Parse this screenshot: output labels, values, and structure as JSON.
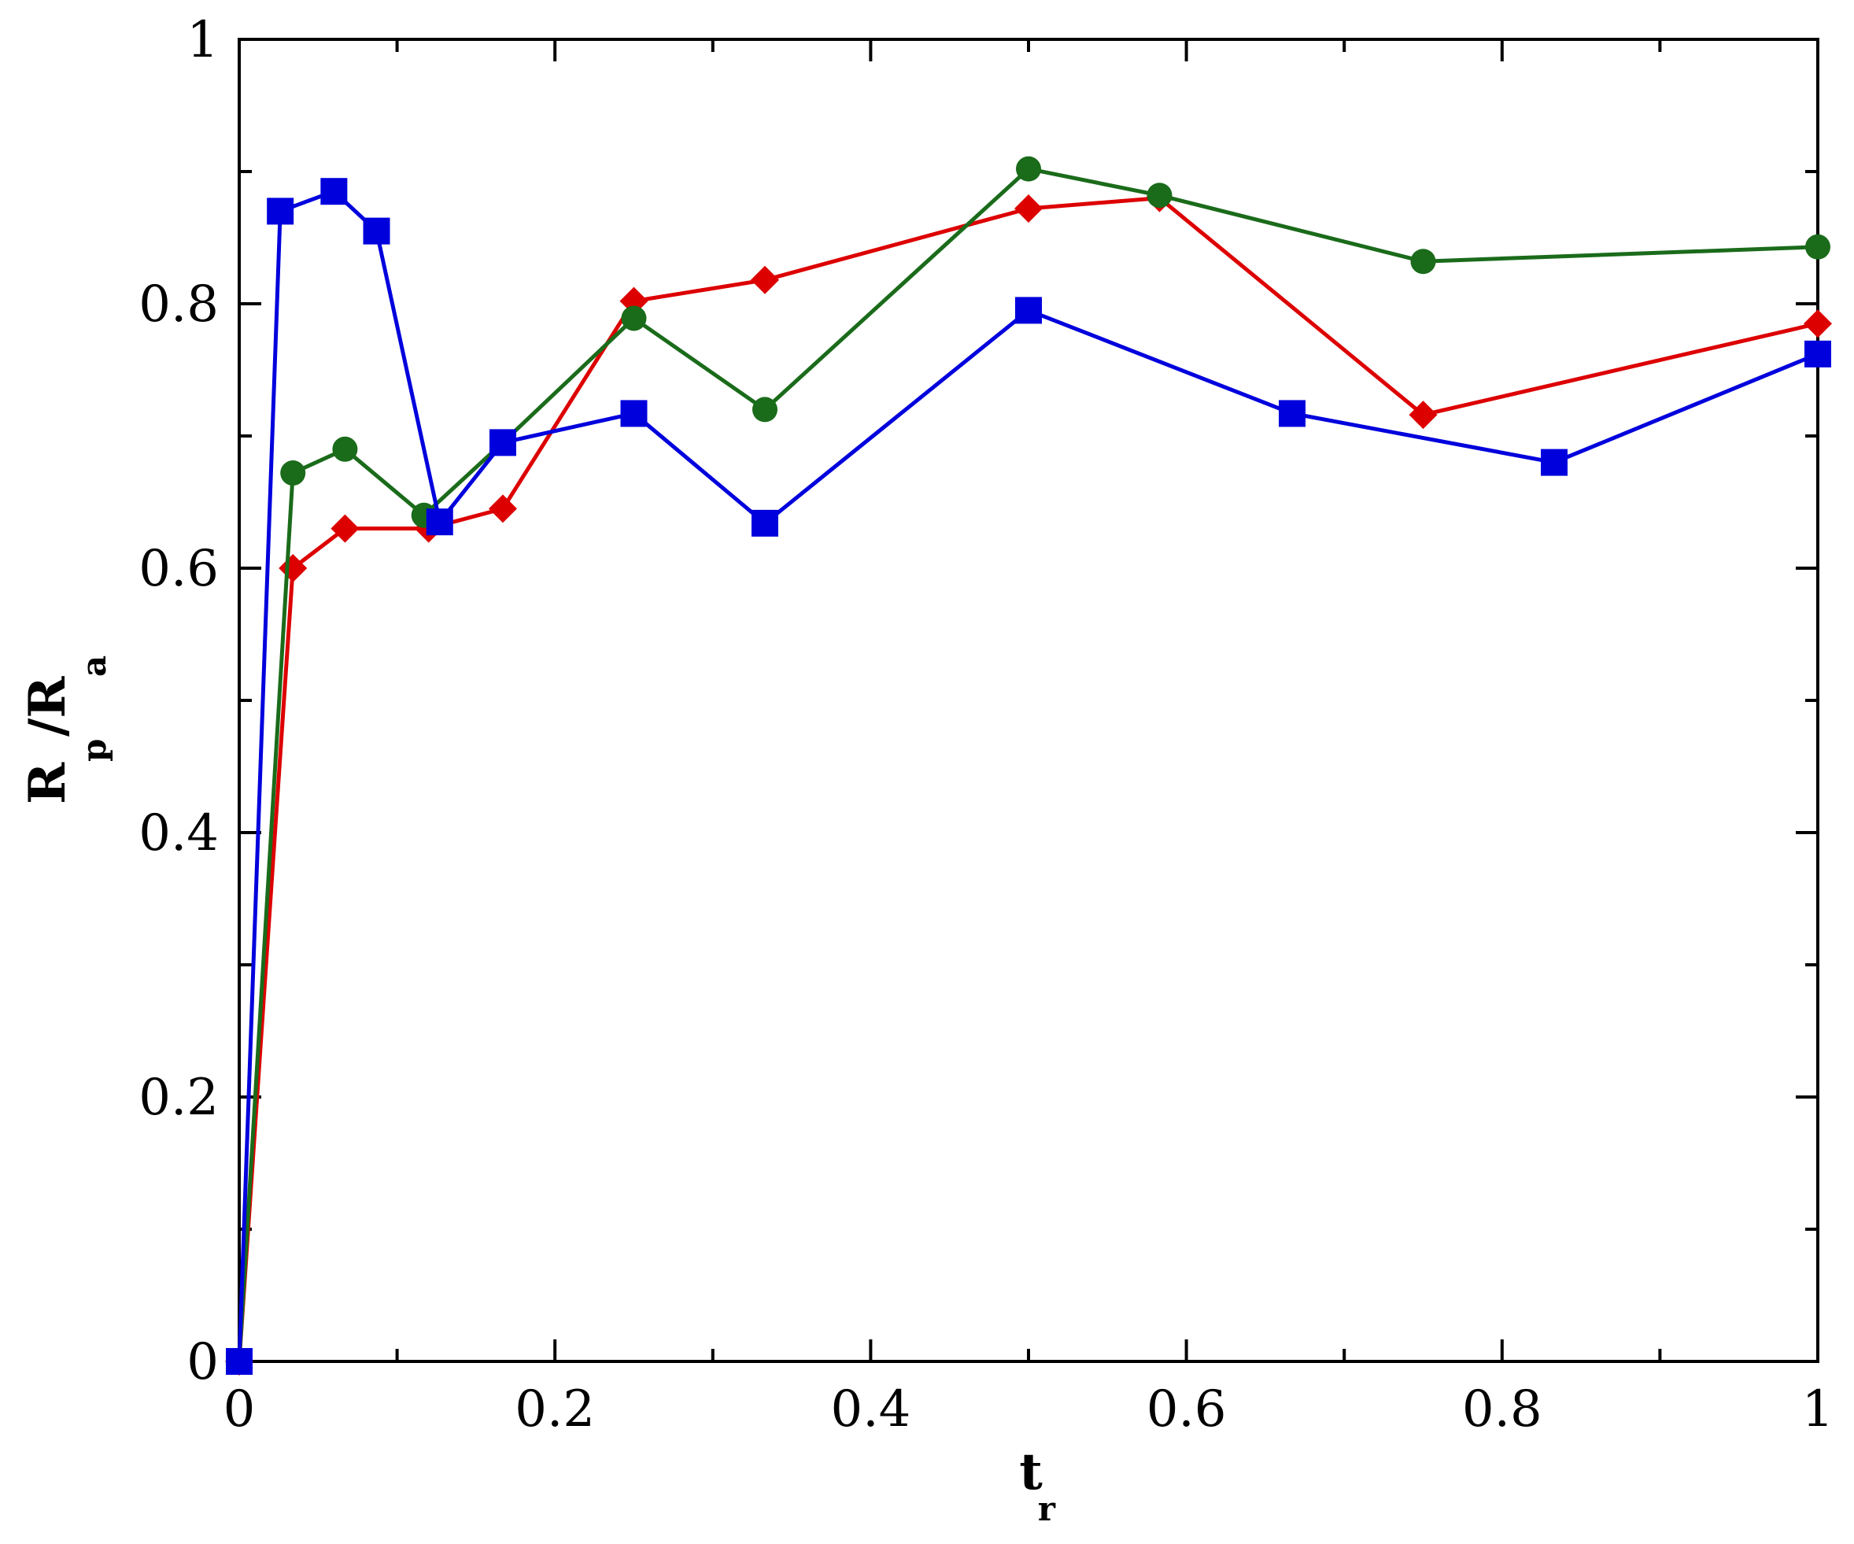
{
  "chart_data": {
    "type": "line",
    "xlabel": {
      "main": "t",
      "sub": "r"
    },
    "ylabel": {
      "main1": "R",
      "sub1": "p",
      "main2": "/R",
      "sub2": "a"
    },
    "xlim": [
      0,
      1
    ],
    "ylim": [
      0,
      1
    ],
    "x_ticks": [
      0,
      0.2,
      0.4,
      0.6,
      0.8,
      1
    ],
    "x_tick_labels": [
      "0",
      "0.2",
      "0.4",
      "0.6",
      "0.8",
      "1"
    ],
    "x_minor_ticks": [
      0.1,
      0.3,
      0.5,
      0.7,
      0.9
    ],
    "y_ticks": [
      0,
      0.2,
      0.4,
      0.6,
      0.8,
      1
    ],
    "y_tick_labels": [
      "0",
      "0.2",
      "0.4",
      "0.6",
      "0.8",
      "1"
    ],
    "y_minor_ticks": [
      0.1,
      0.3,
      0.5,
      0.7,
      0.9
    ],
    "grid": false,
    "series": [
      {
        "color": "#0000dd",
        "marker": "square",
        "points": [
          [
            0,
            0
          ],
          [
            0.026,
            0.87
          ],
          [
            0.06,
            0.885
          ],
          [
            0.087,
            0.855
          ],
          [
            0.127,
            0.635
          ],
          [
            0.167,
            0.695
          ],
          [
            0.25,
            0.717
          ],
          [
            0.333,
            0.634
          ],
          [
            0.5,
            0.795
          ],
          [
            0.667,
            0.717
          ],
          [
            0.833,
            0.68
          ],
          [
            1.0,
            0.762
          ]
        ]
      },
      {
        "color": "#dd0000",
        "marker": "diamond",
        "points": [
          [
            0,
            0
          ],
          [
            0.034,
            0.6
          ],
          [
            0.067,
            0.63
          ],
          [
            0.12,
            0.63
          ],
          [
            0.167,
            0.645
          ],
          [
            0.25,
            0.802
          ],
          [
            0.333,
            0.818
          ],
          [
            0.5,
            0.872
          ],
          [
            0.583,
            0.88
          ],
          [
            0.75,
            0.716
          ],
          [
            1.0,
            0.785
          ]
        ]
      },
      {
        "color": "#1a6b1a",
        "marker": "circle",
        "points": [
          [
            0,
            0
          ],
          [
            0.034,
            0.672
          ],
          [
            0.067,
            0.69
          ],
          [
            0.117,
            0.64
          ],
          [
            0.167,
            0.695
          ],
          [
            0.25,
            0.789
          ],
          [
            0.333,
            0.72
          ],
          [
            0.5,
            0.902
          ],
          [
            0.583,
            0.882
          ],
          [
            0.75,
            0.832
          ],
          [
            1.0,
            0.843
          ]
        ]
      }
    ]
  }
}
